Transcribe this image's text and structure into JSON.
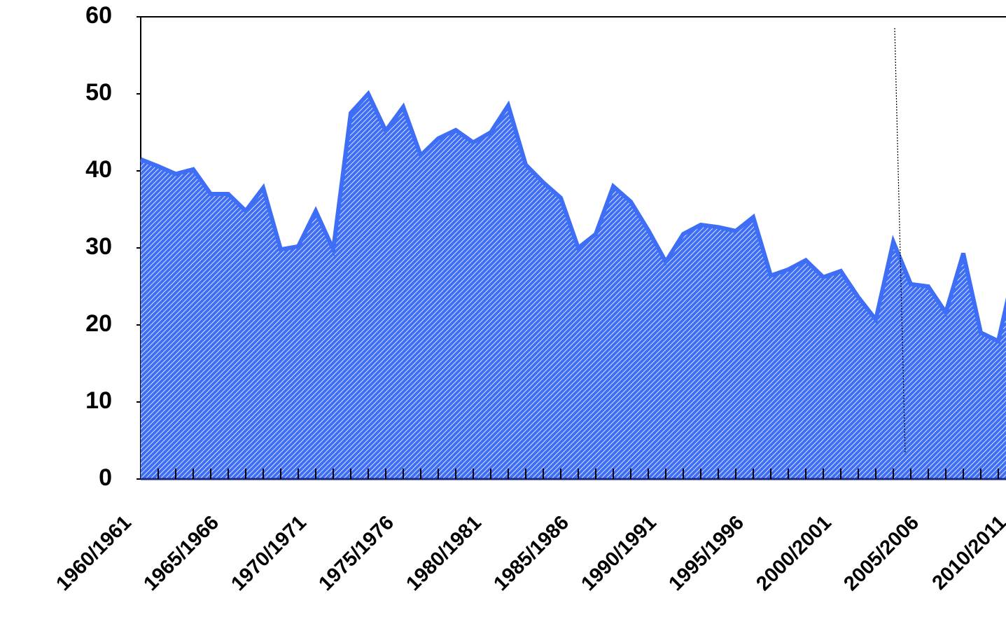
{
  "chart_data": {
    "type": "area",
    "categories": [
      "1960/1961",
      null,
      null,
      null,
      null,
      "1965/1966",
      null,
      null,
      null,
      null,
      "1970/1971",
      null,
      null,
      null,
      null,
      "1975/1976",
      null,
      null,
      null,
      null,
      "1980/1981",
      null,
      null,
      null,
      null,
      "1985/1986",
      null,
      null,
      null,
      null,
      "1990/1991",
      null,
      null,
      null,
      null,
      "1995/1996",
      null,
      null,
      null,
      null,
      "2000/2001",
      null,
      null,
      null,
      null,
      "2005/2006",
      null,
      null,
      null,
      null,
      "2010/2011"
    ],
    "values": [
      41.5,
      40.6,
      39.6,
      40.2,
      37,
      37,
      34.8,
      37.8,
      29.8,
      30.2,
      34.8,
      29.8,
      47.5,
      50,
      45.2,
      48.3,
      42,
      44.2,
      45.3,
      43.7,
      45,
      48.5,
      40.8,
      38.5,
      36.5,
      30,
      31.8,
      38,
      36,
      32.3,
      28.2,
      31.8,
      33,
      32.7,
      32.2,
      34,
      26.4,
      27.2,
      28.4,
      26.2,
      27,
      23.6,
      20.7,
      30.8,
      25.3,
      25,
      21.6,
      29.3,
      19,
      17.9,
      28
    ],
    "color": "#3d6ef5",
    "ylim": [
      0,
      60
    ],
    "yticks": [
      0,
      10,
      20,
      30,
      40,
      50,
      60
    ],
    "grid": false
  }
}
